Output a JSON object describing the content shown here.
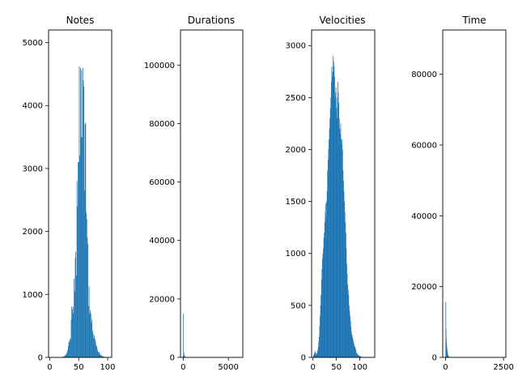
{
  "colors": {
    "bar": "#1f77b4",
    "axis": "#000000",
    "background": "#ffffff"
  },
  "chart_data": [
    {
      "type": "bar",
      "title": "Notes",
      "xlim": [
        -2,
        107
      ],
      "ylim": [
        0,
        5200
      ],
      "xticks": [
        0,
        50,
        100
      ],
      "yticks": [
        0,
        1000,
        2000,
        3000,
        4000,
        5000
      ],
      "bar_width": 1,
      "x": [
        21,
        22,
        23,
        24,
        25,
        26,
        27,
        28,
        29,
        30,
        31,
        32,
        33,
        34,
        35,
        36,
        37,
        38,
        39,
        40,
        41,
        42,
        43,
        44,
        45,
        46,
        47,
        48,
        49,
        50,
        51,
        52,
        53,
        54,
        55,
        56,
        57,
        58,
        59,
        60,
        61,
        62,
        63,
        64,
        65,
        66,
        67,
        68,
        69,
        70,
        71,
        72,
        73,
        74,
        75,
        76,
        77,
        78,
        79,
        80,
        81,
        82,
        83,
        84,
        85,
        86,
        87,
        88,
        89,
        90,
        91,
        92,
        93,
        94,
        95,
        96,
        97,
        98,
        99,
        100,
        101,
        102,
        103,
        104,
        105
      ],
      "values": [
        5,
        8,
        10,
        15,
        20,
        25,
        35,
        45,
        60,
        90,
        120,
        180,
        260,
        240,
        300,
        280,
        600,
        810,
        760,
        800,
        700,
        1250,
        1050,
        1580,
        1680,
        1300,
        2800,
        2400,
        3100,
        3100,
        4620,
        3200,
        4600,
        3500,
        4560,
        3500,
        4600,
        4400,
        4300,
        2650,
        3700,
        3730,
        2300,
        2200,
        1900,
        1800,
        820,
        1130,
        700,
        750,
        700,
        550,
        600,
        420,
        380,
        300,
        350,
        300,
        260,
        200,
        180,
        140,
        100,
        80,
        90,
        60,
        50,
        40,
        30,
        25,
        20,
        15,
        12,
        10,
        8,
        6,
        5,
        4,
        3,
        3,
        2,
        2,
        1,
        1,
        1
      ]
    },
    {
      "type": "bar",
      "title": "Durations",
      "xlim": [
        -300,
        6600
      ],
      "ylim": [
        0,
        112000
      ],
      "xticks": [
        0,
        5000
      ],
      "yticks": [
        0,
        20000,
        40000,
        60000,
        80000,
        100000
      ],
      "bar_width": 35,
      "x": [
        10,
        50,
        90,
        130,
        170,
        210,
        250
      ],
      "values": [
        15000,
        1800,
        1000,
        600,
        300,
        150,
        80
      ]
    },
    {
      "type": "bar",
      "title": "Velocities",
      "xlim": [
        -3,
        132
      ],
      "ylim": [
        0,
        3150
      ],
      "xticks": [
        0,
        50,
        100
      ],
      "yticks": [
        0,
        500,
        1000,
        1500,
        2000,
        2500,
        3000
      ],
      "bar_width": 1,
      "x": [
        1,
        2,
        3,
        4,
        5,
        6,
        7,
        8,
        9,
        10,
        11,
        12,
        13,
        14,
        15,
        16,
        17,
        18,
        19,
        20,
        21,
        22,
        23,
        24,
        25,
        26,
        27,
        28,
        29,
        30,
        31,
        32,
        33,
        34,
        35,
        36,
        37,
        38,
        39,
        40,
        41,
        42,
        43,
        44,
        45,
        46,
        47,
        48,
        49,
        50,
        51,
        52,
        53,
        54,
        55,
        56,
        57,
        58,
        59,
        60,
        61,
        62,
        63,
        64,
        65,
        66,
        67,
        68,
        69,
        70,
        71,
        72,
        73,
        74,
        75,
        76,
        77,
        78,
        79,
        80,
        81,
        82,
        83,
        84,
        85,
        86,
        87,
        88,
        89,
        90,
        91,
        92,
        93,
        94,
        95,
        96,
        97,
        98,
        99,
        100,
        101,
        102,
        103,
        104,
        105,
        106,
        107,
        108,
        109,
        110,
        111,
        112,
        113,
        114,
        115,
        116,
        117,
        118,
        119,
        120,
        121,
        122,
        123,
        124,
        125,
        126,
        127
      ],
      "values": [
        20,
        30,
        40,
        60,
        50,
        35,
        25,
        40,
        55,
        70,
        100,
        150,
        200,
        300,
        400,
        500,
        600,
        750,
        850,
        950,
        1000,
        1050,
        1150,
        1200,
        1300,
        1400,
        1480,
        1350,
        1500,
        1600,
        1800,
        1900,
        2000,
        2100,
        2200,
        2300,
        2400,
        2500,
        2650,
        2800,
        2700,
        2750,
        2900,
        2850,
        2800,
        2700,
        2500,
        2550,
        2600,
        2400,
        2300,
        2500,
        2650,
        2550,
        2450,
        2300,
        2200,
        2150,
        2250,
        2100,
        2050,
        2100,
        2000,
        1800,
        1700,
        1600,
        1500,
        1400,
        1300,
        1200,
        1050,
        900,
        800,
        700,
        650,
        600,
        500,
        450,
        400,
        350,
        300,
        250,
        220,
        200,
        180,
        160,
        140,
        120,
        100,
        100,
        80,
        60,
        40,
        40,
        30,
        20,
        25,
        15,
        10,
        15,
        10,
        8,
        6,
        5,
        5,
        5,
        4,
        4,
        3,
        3,
        3,
        3,
        2,
        2,
        2,
        2,
        2,
        2,
        1,
        1,
        1,
        1,
        1,
        1,
        1,
        1,
        1
      ]
    },
    {
      "type": "bar",
      "title": "Time",
      "xlim": [
        -120,
        2600
      ],
      "ylim": [
        0,
        92500
      ],
      "xticks": [
        0,
        2500
      ],
      "yticks": [
        0,
        20000,
        40000,
        60000,
        80000
      ],
      "bar_width": 12,
      "x": [
        5,
        15,
        25,
        35,
        45,
        55,
        65,
        75,
        85,
        95,
        105,
        115,
        125,
        135,
        145,
        155
      ],
      "values": [
        15700,
        8000,
        5500,
        4000,
        3200,
        2500,
        1800,
        1300,
        900,
        700,
        500,
        400,
        300,
        250,
        200,
        150
      ]
    }
  ]
}
